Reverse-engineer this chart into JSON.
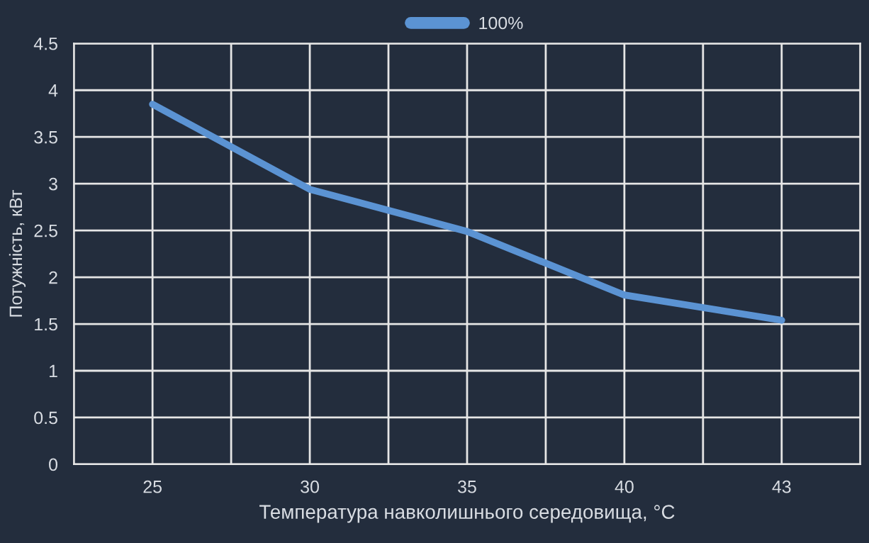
{
  "chart_data": {
    "type": "line",
    "xlabel": "Температура навколишнього середовища, °C",
    "ylabel": "Потужність, кВт",
    "categories": [
      "25",
      "30",
      "35",
      "40",
      "43"
    ],
    "series": [
      {
        "name": "100%",
        "color": "#5b93d3",
        "values": [
          3.85,
          2.94,
          2.49,
          1.81,
          1.54
        ]
      }
    ],
    "ylim": [
      0,
      4.5
    ],
    "yticks": [
      0,
      0.5,
      1,
      1.5,
      2,
      2.5,
      3,
      3.5,
      4,
      4.5
    ],
    "grid": true,
    "legend": "top",
    "marker": "none",
    "line_style": "solid"
  }
}
